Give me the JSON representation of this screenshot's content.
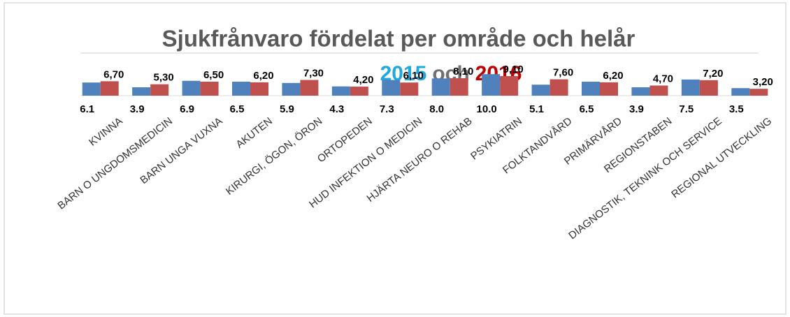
{
  "chart_data": {
    "type": "bar",
    "title": "Sjukfrånvaro fördelat per område och helår",
    "subtitle_joiner": "och",
    "categories": [
      "KVINNA",
      "BARN O UNGDOMSMEDICIN",
      "BARN UNGA VUXNA",
      "AKUTEN",
      "KIRURGI, ÖGON, ÖRON",
      "ORTOPEDEN",
      "HUD INFEKTION O MEDICIN",
      "HJÄRTA NEURO O REHAB",
      "PSYKIATRIN",
      "FOLKTANDVÅRD",
      "PRIMÄRVÅRD",
      "REGIONSTABEN",
      "DIAGNOSTIK, TEKNINK OCH SERVICE",
      "REGIONAL UTVECKLING"
    ],
    "series": [
      {
        "name": "2015",
        "color": "#4f81bd",
        "label_color": "#1fa8e0",
        "values": [
          6.1,
          3.9,
          6.9,
          6.5,
          5.9,
          4.3,
          7.3,
          8.0,
          10.0,
          5.1,
          6.5,
          3.9,
          7.5,
          3.5
        ],
        "value_labels": [
          "6.1",
          "3.9",
          "6.9",
          "6.5",
          "5.9",
          "4.3",
          "7.3",
          "8.0",
          "10.0",
          "5.1",
          "6.5",
          "3.9",
          "7.5",
          "3.5"
        ]
      },
      {
        "name": "2016",
        "color": "#c0504d",
        "label_color": "#c00000",
        "values": [
          6.7,
          5.3,
          6.5,
          6.2,
          7.3,
          4.2,
          6.1,
          8.1,
          9.1,
          7.6,
          6.2,
          4.7,
          7.2,
          3.2
        ],
        "value_labels": [
          "6,70",
          "5,30",
          "6,50",
          "6,20",
          "7,30",
          "4,20",
          "6,10",
          "8,10",
          "9,10",
          "7,60",
          "6,20",
          "4,70",
          "7,20",
          "3,20"
        ]
      }
    ],
    "ylim": [
      0,
      12
    ]
  }
}
